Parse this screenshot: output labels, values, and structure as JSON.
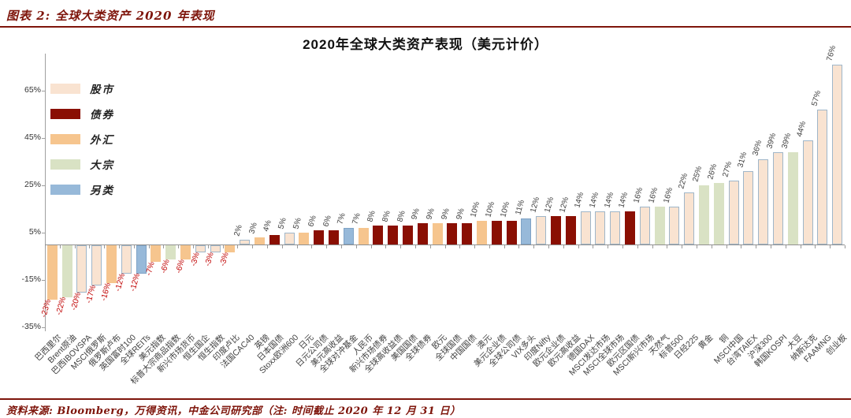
{
  "page": {
    "header_title": "图表 2:  全球大类资产 2020 年表现",
    "footer": "资料来源: Bloomberg，万得资讯，中金公司研究部（注: 时间截止 2020 年 12 月 31 日）"
  },
  "chart_data": {
    "type": "bar",
    "title": "2020年全球大类资产表现（美元计价）",
    "xlabel": "",
    "ylabel": "",
    "ylim": [
      -35,
      80
    ],
    "yticks": [
      -35,
      -15,
      5,
      25,
      45,
      65
    ],
    "grid": false,
    "legend_position": "top-left",
    "legend": [
      {
        "key": "stock",
        "label": "股市",
        "fill": "#F9E3D1",
        "border": "#9FB6C9"
      },
      {
        "key": "bond",
        "label": "债券",
        "fill": "#8A0F03",
        "border": null
      },
      {
        "key": "fx",
        "label": "外汇",
        "fill": "#F6C58E",
        "border": null
      },
      {
        "key": "commodity",
        "label": "大宗",
        "fill": "#D9E2C4",
        "border": null
      },
      {
        "key": "alternative",
        "label": "另类",
        "fill": "#97B9D9",
        "border": "#7FA3C6"
      }
    ],
    "value_label_colors": {
      "positive": "#404040",
      "negative": "#C00000"
    },
    "categories": [
      "巴西里尔",
      "Brent原油",
      "巴西IBOVSPA",
      "MSCI俄罗斯",
      "俄罗斯卢布",
      "英国富时100",
      "全球REITs",
      "美元指数",
      "标普大宗商品指数",
      "新兴市场货币",
      "恒生国企",
      "恒生指数",
      "印度卢比",
      "法国CAC40",
      "英镑",
      "日本国债",
      "Stoxx欧洲600",
      "日元",
      "日元公司债",
      "美元高收益",
      "全球对冲基金",
      "人民币",
      "新兴市场债券",
      "全球高收益债",
      "美国国债",
      "全球债券",
      "欧元",
      "全球国债",
      "中国国债",
      "澳元",
      "美元企业债",
      "全球公司债",
      "VIX多头",
      "印度Nifty",
      "欧元企业债",
      "欧元高收益",
      "德国DAX",
      "MSCI发达市场",
      "MSCI全球市场",
      "欧元区国债",
      "MSCI新兴市场",
      "天然气",
      "标普500",
      "日经225",
      "黄金",
      "铜",
      "MSCI中国",
      "台湾TAIEX",
      "沪深300",
      "韩国KOSPI",
      "大豆",
      "纳斯达克",
      "FAAMNG",
      "创业板"
    ],
    "values": [
      -23,
      -22,
      -20,
      -17,
      -16,
      -12,
      -12,
      -7,
      -6,
      -6,
      -3,
      -3,
      -3,
      2,
      3,
      4,
      5,
      5,
      6,
      6,
      7,
      7,
      8,
      8,
      8,
      9,
      9,
      9,
      9,
      10,
      10,
      10,
      11,
      12,
      12,
      12,
      14,
      14,
      14,
      14,
      16,
      16,
      16,
      22,
      25,
      26,
      27,
      31,
      36,
      39,
      39,
      44,
      57,
      76
    ],
    "classes": [
      "fx",
      "commodity",
      "stock",
      "stock",
      "fx",
      "stock",
      "alternative",
      "fx",
      "commodity",
      "fx",
      "stock",
      "stock",
      "fx",
      "stock",
      "fx",
      "bond",
      "stock",
      "fx",
      "bond",
      "bond",
      "alternative",
      "fx",
      "bond",
      "bond",
      "bond",
      "bond",
      "fx",
      "bond",
      "bond",
      "fx",
      "bond",
      "bond",
      "alternative",
      "stock",
      "bond",
      "bond",
      "stock",
      "stock",
      "stock",
      "bond",
      "stock",
      "commodity",
      "stock",
      "stock",
      "commodity",
      "commodity",
      "stock",
      "stock",
      "stock",
      "stock",
      "commodity",
      "stock",
      "stock",
      "stock"
    ]
  }
}
